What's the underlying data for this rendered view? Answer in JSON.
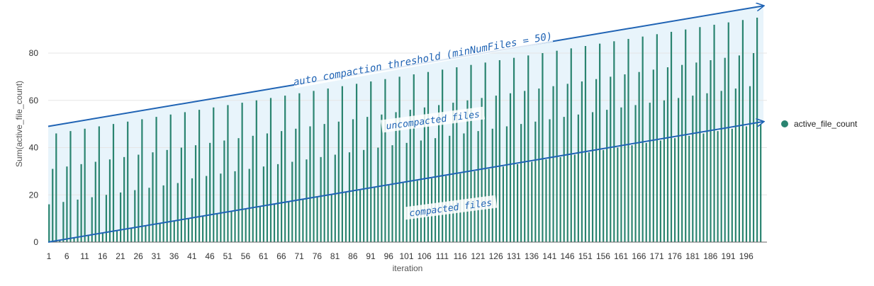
{
  "chart_data": {
    "type": "bar",
    "xlabel": "iteration",
    "ylabel": "Sum(active_file_count)",
    "ylim": [
      0,
      100
    ],
    "yticks": [
      0,
      20,
      40,
      60,
      80
    ],
    "x_range": [
      1,
      200
    ],
    "xticks": [
      1,
      6,
      11,
      16,
      21,
      26,
      31,
      36,
      41,
      46,
      51,
      56,
      61,
      66,
      71,
      76,
      81,
      86,
      91,
      96,
      101,
      106,
      111,
      116,
      121,
      126,
      131,
      136,
      141,
      146,
      151,
      156,
      161,
      166,
      171,
      176,
      181,
      186,
      191,
      196
    ],
    "grid": "horizontal",
    "legend_position": "right",
    "series": [
      {
        "name": "active_file_count",
        "color": "#2a8470",
        "values": [
          16,
          31,
          46,
          1,
          17,
          32,
          47,
          2,
          18,
          33,
          48,
          3,
          19,
          34,
          49,
          4,
          20,
          35,
          50,
          5,
          21,
          36,
          51,
          6,
          22,
          37,
          52,
          7,
          23,
          38,
          53,
          8,
          24,
          39,
          54,
          9,
          25,
          40,
          55,
          10,
          27,
          41,
          56,
          11,
          28,
          42,
          57,
          12,
          29,
          43,
          58,
          13,
          30,
          44,
          59,
          14,
          31,
          45,
          60,
          15,
          32,
          46,
          61,
          16,
          33,
          47,
          62,
          17,
          34,
          48,
          63,
          18,
          35,
          49,
          64,
          19,
          36,
          50,
          65,
          20,
          37,
          51,
          66,
          21,
          38,
          52,
          67,
          22,
          39,
          53,
          68,
          23,
          40,
          54,
          69,
          24,
          41,
          55,
          70,
          25,
          42,
          56,
          71,
          26,
          43,
          57,
          72,
          27,
          44,
          58,
          73,
          28,
          45,
          59,
          74,
          29,
          46,
          60,
          75,
          30,
          47,
          61,
          76,
          31,
          48,
          62,
          77,
          32,
          49,
          63,
          78,
          33,
          50,
          64,
          79,
          34,
          51,
          65,
          80,
          35,
          52,
          66,
          81,
          36,
          53,
          67,
          82,
          37,
          54,
          68,
          83,
          38,
          55,
          69,
          84,
          39,
          56,
          70,
          85,
          40,
          57,
          71,
          86,
          41,
          58,
          72,
          87,
          42,
          59,
          73,
          88,
          43,
          60,
          74,
          89,
          44,
          61,
          75,
          90,
          45,
          62,
          76,
          91,
          46,
          63,
          77,
          92,
          47,
          64,
          78,
          93,
          48,
          65,
          79,
          94,
          49,
          66,
          80,
          95,
          50
        ]
      }
    ],
    "annotations": [
      {
        "text": "auto compaction threshold (minNumFiles = 50)",
        "line_from": [
          1,
          49
        ],
        "line_to": [
          201,
          100
        ],
        "arrow": true,
        "color": "#1f63b4"
      },
      {
        "text": "uncompacted files"
      },
      {
        "text": "compacted files"
      },
      {
        "line_from": [
          1,
          0
        ],
        "line_to": [
          201,
          51
        ],
        "arrow": true,
        "color": "#1f63b4"
      }
    ]
  }
}
